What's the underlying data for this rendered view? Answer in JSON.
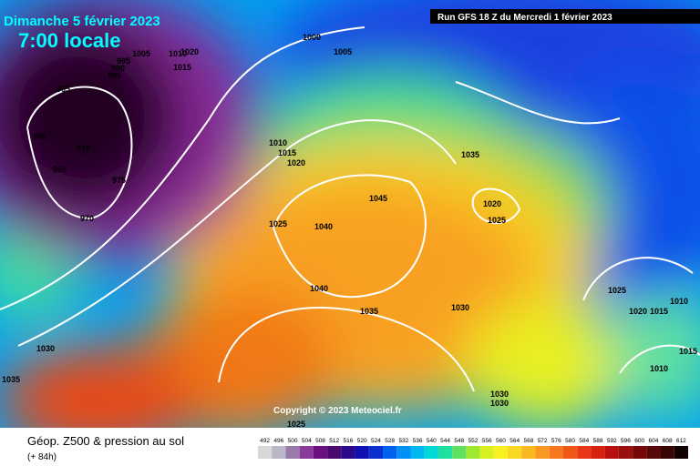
{
  "header": {
    "date": "Dimanche 5 février 2023",
    "time": "7:00 locale",
    "run": "Run GFS 18 Z du Mercredi 1 février 2023"
  },
  "isobar_labels": [
    "1000",
    "1005",
    "1005",
    "1010",
    "1020",
    "1015",
    "995",
    "990",
    "985",
    "965",
    "965",
    "970",
    "965",
    "975",
    "970",
    "1010",
    "1015",
    "1020",
    "1025",
    "1040",
    "1045",
    "1040",
    "1035",
    "1030",
    "1035",
    "1020",
    "1025",
    "1025",
    "1020",
    "1015",
    "1010",
    "1015",
    "1010",
    "1030",
    "1035",
    "1030",
    "1030",
    "1025"
  ],
  "copyright": "Copyright © 2023 Meteociel.fr",
  "footer": {
    "title": "Géop. Z500 & pression au sol",
    "lead": "(+ 84h)"
  },
  "scale": {
    "labels": [
      "492",
      "496",
      "500",
      "504",
      "508",
      "512",
      "516",
      "520",
      "524",
      "528",
      "532",
      "536",
      "540",
      "544",
      "548",
      "552",
      "556",
      "560",
      "564",
      "568",
      "572",
      "576",
      "580",
      "584",
      "588",
      "592",
      "596",
      "600",
      "604",
      "608",
      "612"
    ],
    "colors": [
      "#d8d8d8",
      "#b8b8c8",
      "#9a7aa8",
      "#8a3a98",
      "#6a1080",
      "#4a0a70",
      "#2a0a8a",
      "#1010b0",
      "#0a30d0",
      "#0060f0",
      "#0090f8",
      "#00b8f0",
      "#00d8d8",
      "#20e0a0",
      "#60e060",
      "#a0e830",
      "#d8f020",
      "#f8f020",
      "#f8d820",
      "#f8b820",
      "#f89820",
      "#f87820",
      "#f05818",
      "#e83818",
      "#d82010",
      "#b81010",
      "#981010",
      "#780808",
      "#580808",
      "#380404",
      "#100000"
    ]
  }
}
